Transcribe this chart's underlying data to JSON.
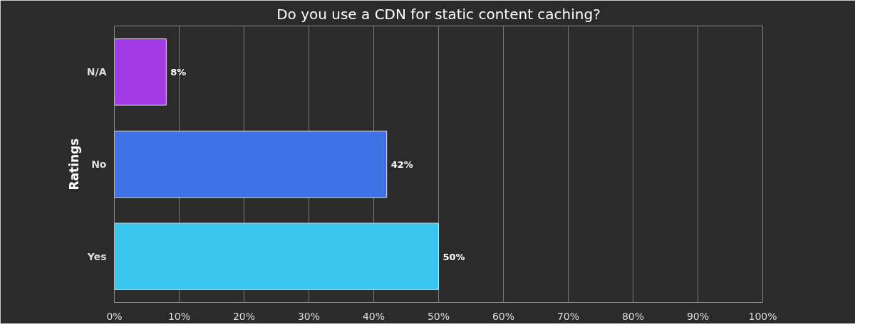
{
  "chart_data": {
    "type": "bar",
    "orientation": "horizontal",
    "title": "Do you use a CDN for static content caching?",
    "ylabel": "Ratings",
    "categories": [
      "N/A",
      "No",
      "Yes"
    ],
    "values": [
      8,
      42,
      50
    ],
    "colors": [
      "#a23ae6",
      "#3f72e6",
      "#38c6ee"
    ],
    "value_labels": [
      "8%",
      "42%",
      "50%"
    ],
    "xlim": [
      0,
      100
    ],
    "xticks": [
      {
        "value": 0,
        "label": "0%"
      },
      {
        "value": 10,
        "label": "10%"
      },
      {
        "value": 20,
        "label": "20%"
      },
      {
        "value": 30,
        "label": "30%"
      },
      {
        "value": 40,
        "label": "40%"
      },
      {
        "value": 50,
        "label": "50%"
      },
      {
        "value": 60,
        "label": "60%"
      },
      {
        "value": 70,
        "label": "70%"
      },
      {
        "value": 80,
        "label": "80%"
      },
      {
        "value": 90,
        "label": "90%"
      },
      {
        "value": 100,
        "label": "100%"
      }
    ],
    "grid": "x"
  }
}
